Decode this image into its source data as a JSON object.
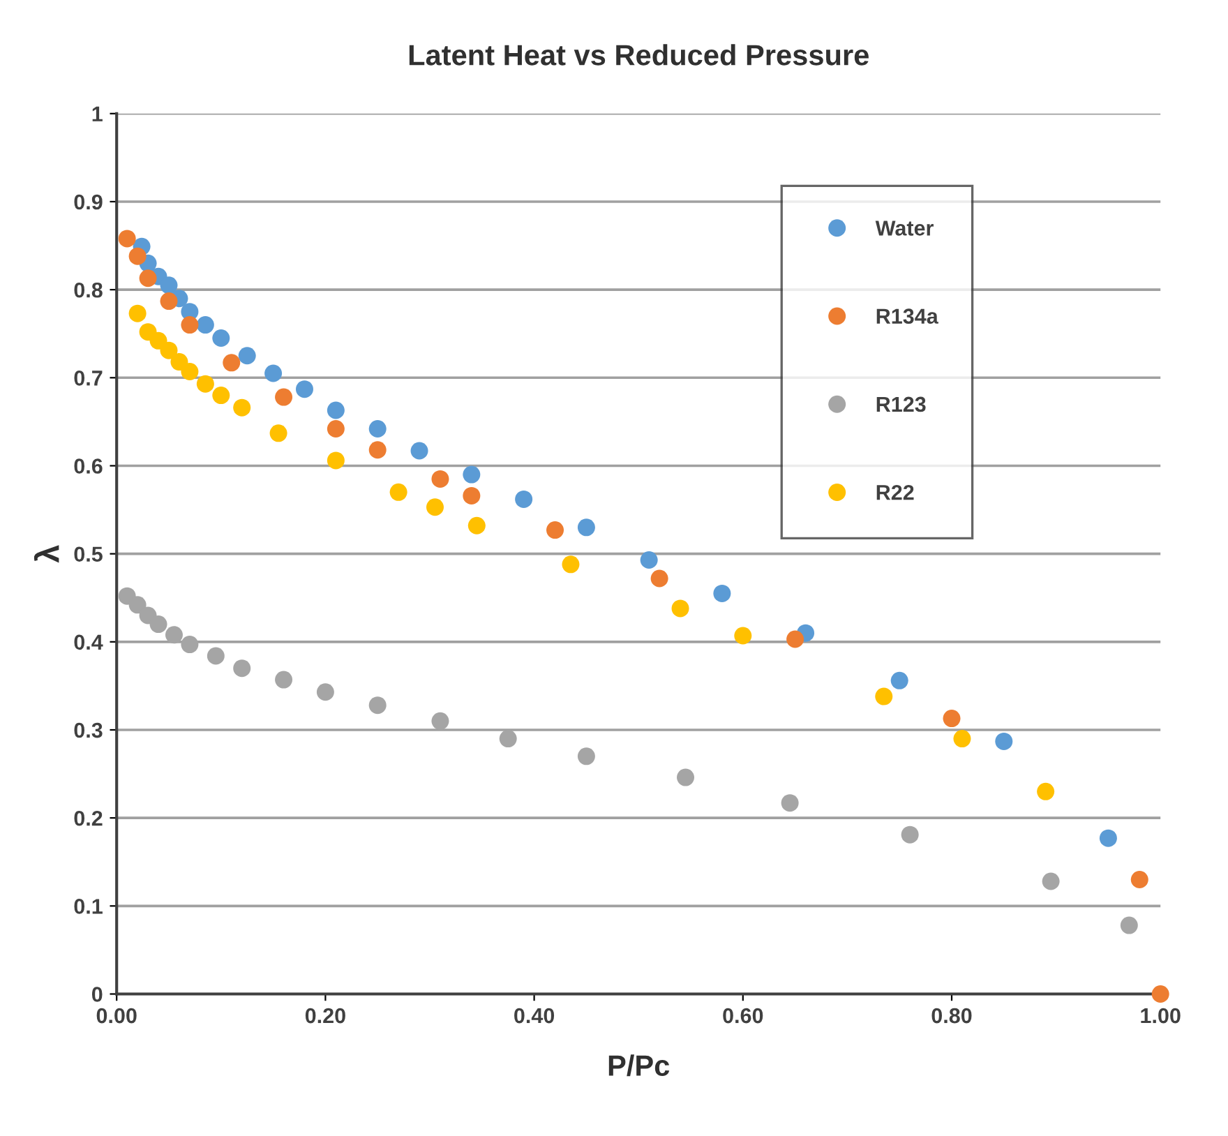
{
  "chart_data": {
    "type": "scatter",
    "title": "Latent Heat vs Reduced Pressure",
    "xlabel": "P/Pc",
    "ylabel": "λ",
    "xlim": [
      0,
      1
    ],
    "ylim": [
      0,
      1
    ],
    "xticks": [
      {
        "value": 0,
        "label": "0.00"
      },
      {
        "value": 0.2,
        "label": "0.20"
      },
      {
        "value": 0.4,
        "label": "0.40"
      },
      {
        "value": 0.6,
        "label": "0.60"
      },
      {
        "value": 0.8,
        "label": "0.80"
      },
      {
        "value": 1,
        "label": "1.00"
      }
    ],
    "yticks": [
      0,
      0.1,
      0.2,
      0.3,
      0.4,
      0.5,
      0.6,
      0.7,
      0.8,
      0.9,
      1
    ],
    "grid": "y",
    "legend": "top right",
    "marker": "circle",
    "series": [
      {
        "name": "Water",
        "color": "#5b9bd5",
        "x": [
          0.024,
          0.03,
          0.04,
          0.05,
          0.06,
          0.07,
          0.085,
          0.1,
          0.125,
          0.15,
          0.18,
          0.21,
          0.25,
          0.29,
          0.34,
          0.39,
          0.45,
          0.51,
          0.58,
          0.66,
          0.75,
          0.85,
          0.95
        ],
        "values": [
          0.849,
          0.83,
          0.815,
          0.805,
          0.79,
          0.775,
          0.76,
          0.745,
          0.725,
          0.705,
          0.687,
          0.663,
          0.642,
          0.617,
          0.59,
          0.562,
          0.53,
          0.493,
          0.455,
          0.41,
          0.356,
          0.287,
          0.177
        ]
      },
      {
        "name": "R134a",
        "color": "#ed7d31",
        "x": [
          0.01,
          0.02,
          0.03,
          0.05,
          0.07,
          0.11,
          0.16,
          0.21,
          0.25,
          0.31,
          0.34,
          0.42,
          0.52,
          0.65,
          0.8,
          0.98,
          1.0
        ],
        "values": [
          0.858,
          0.838,
          0.813,
          0.787,
          0.76,
          0.717,
          0.678,
          0.642,
          0.618,
          0.585,
          0.566,
          0.527,
          0.472,
          0.403,
          0.313,
          0.13,
          0.0
        ]
      },
      {
        "name": "R123",
        "color": "#a5a5a5",
        "x": [
          0.01,
          0.02,
          0.03,
          0.04,
          0.055,
          0.07,
          0.095,
          0.12,
          0.16,
          0.2,
          0.25,
          0.31,
          0.375,
          0.45,
          0.545,
          0.645,
          0.76,
          0.895,
          0.97
        ],
        "values": [
          0.452,
          0.442,
          0.43,
          0.42,
          0.408,
          0.397,
          0.384,
          0.37,
          0.357,
          0.343,
          0.328,
          0.31,
          0.29,
          0.27,
          0.246,
          0.217,
          0.181,
          0.128,
          0.078
        ]
      },
      {
        "name": "R22",
        "color": "#ffc000",
        "x": [
          0.02,
          0.03,
          0.04,
          0.05,
          0.06,
          0.07,
          0.085,
          0.1,
          0.12,
          0.155,
          0.21,
          0.27,
          0.305,
          0.345,
          0.435,
          0.54,
          0.6,
          0.735,
          0.81,
          0.89
        ],
        "values": [
          0.773,
          0.752,
          0.742,
          0.731,
          0.718,
          0.707,
          0.693,
          0.68,
          0.666,
          0.637,
          0.606,
          0.57,
          0.553,
          0.532,
          0.488,
          0.438,
          0.407,
          0.338,
          0.29,
          0.23
        ]
      }
    ]
  }
}
